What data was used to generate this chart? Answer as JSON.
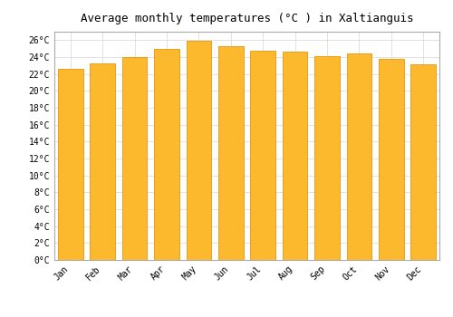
{
  "title": "Average monthly temperatures (°C ) in Xaltianguis",
  "months": [
    "Jan",
    "Feb",
    "Mar",
    "Apr",
    "May",
    "Jun",
    "Jul",
    "Aug",
    "Sep",
    "Oct",
    "Nov",
    "Dec"
  ],
  "values": [
    22.6,
    23.2,
    24.0,
    25.0,
    25.9,
    25.3,
    24.8,
    24.6,
    24.1,
    24.4,
    23.8,
    23.1
  ],
  "bar_color": "#FDB92E",
  "bar_edge_color": "#E8950A",
  "background_color": "#ffffff",
  "grid_color": "#dddddd",
  "ylim": [
    0,
    27
  ],
  "yticks": [
    0,
    2,
    4,
    6,
    8,
    10,
    12,
    14,
    16,
    18,
    20,
    22,
    24,
    26
  ],
  "title_fontsize": 9,
  "tick_fontsize": 7,
  "font_family": "monospace"
}
